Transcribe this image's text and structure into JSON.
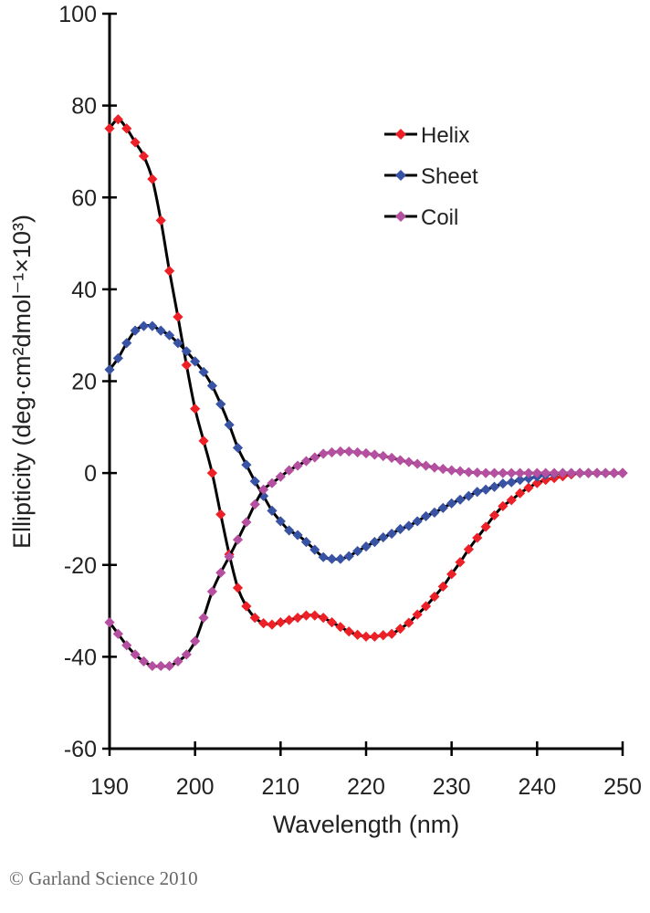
{
  "chart_data": {
    "type": "line",
    "title": "",
    "xlabel": "Wavelength (nm)",
    "ylabel": "Ellipticity (deg·cm²dmol⁻¹×10³)",
    "xlim": [
      190,
      250
    ],
    "ylim": [
      -60,
      100
    ],
    "xticks": [
      190,
      200,
      210,
      220,
      230,
      240,
      250
    ],
    "yticks": [
      100,
      80,
      60,
      40,
      20,
      0,
      -20,
      -40,
      -60
    ],
    "grid": false,
    "legend": "top-right",
    "marker": "diamond",
    "line_color": "#000000",
    "x": [
      190,
      191,
      192,
      193,
      194,
      195,
      196,
      197,
      198,
      199,
      200,
      201,
      202,
      203,
      204,
      205,
      206,
      207,
      208,
      209,
      210,
      211,
      212,
      213,
      214,
      215,
      216,
      217,
      218,
      219,
      220,
      221,
      222,
      223,
      224,
      225,
      226,
      227,
      228,
      229,
      230,
      231,
      232,
      233,
      234,
      235,
      236,
      237,
      238,
      239,
      240,
      241,
      242,
      243,
      244,
      245,
      246,
      247,
      248,
      249,
      250
    ],
    "series": [
      {
        "name": "Helix",
        "color": "#ee2027",
        "values": [
          75,
          77,
          75,
          72,
          69,
          64,
          55,
          44,
          34,
          23.5,
          14,
          7,
          0,
          -9,
          -17.7,
          -25,
          -29,
          -31.5,
          -32.7,
          -33,
          -32.5,
          -32,
          -31.5,
          -31,
          -31,
          -31.5,
          -32.5,
          -33.5,
          -34.5,
          -35.2,
          -35.6,
          -35.6,
          -35.3,
          -35,
          -33.9,
          -32.6,
          -30.8,
          -29,
          -26.9,
          -24.7,
          -22,
          -19.4,
          -16.6,
          -14.1,
          -11.7,
          -9.2,
          -7.2,
          -5.9,
          -4.4,
          -3.2,
          -2.2,
          -1.5,
          -1.1,
          -0.7,
          -0.3,
          0,
          0,
          0,
          0,
          0,
          0
        ]
      },
      {
        "name": "Sheet",
        "color": "#3953a4",
        "values": [
          22.5,
          25,
          28.3,
          31,
          32,
          32,
          31,
          30,
          28.3,
          26.5,
          24.3,
          22,
          19,
          15,
          10.5,
          5.5,
          1.8,
          -1.8,
          -5,
          -8.2,
          -10.5,
          -12.5,
          -13.5,
          -15,
          -16.7,
          -18.3,
          -18.7,
          -18.7,
          -18.1,
          -17,
          -16,
          -15,
          -14,
          -13.2,
          -12.2,
          -11.5,
          -10.5,
          -9.4,
          -8.6,
          -7.6,
          -6.6,
          -5.8,
          -5,
          -4.1,
          -3.6,
          -3,
          -2.3,
          -2,
          -1.5,
          -1.2,
          -0.8,
          -0.4,
          -0.2,
          0,
          0,
          0,
          0,
          0,
          0,
          0,
          0
        ]
      },
      {
        "name": "Coil",
        "color": "#b54fa0",
        "values": [
          -32.5,
          -35,
          -37.5,
          -39.5,
          -41,
          -42,
          -42,
          -42,
          -41,
          -39.5,
          -36.6,
          -31.5,
          -25.8,
          -21.7,
          -18.2,
          -14.5,
          -10.7,
          -6.8,
          -3.6,
          -2.2,
          -0.8,
          0.6,
          1.6,
          2.6,
          3.4,
          4.2,
          4.5,
          4.7,
          4.7,
          4.5,
          4.3,
          4,
          3.7,
          3.3,
          2.8,
          2.4,
          2,
          1.6,
          1.2,
          0.9,
          0.6,
          0.4,
          0.2,
          0.1,
          0,
          0,
          0,
          0,
          0,
          0,
          0,
          0,
          0,
          0,
          0,
          0,
          0,
          0,
          0,
          0,
          0
        ]
      }
    ]
  },
  "copyright": "© Garland Science 2010"
}
